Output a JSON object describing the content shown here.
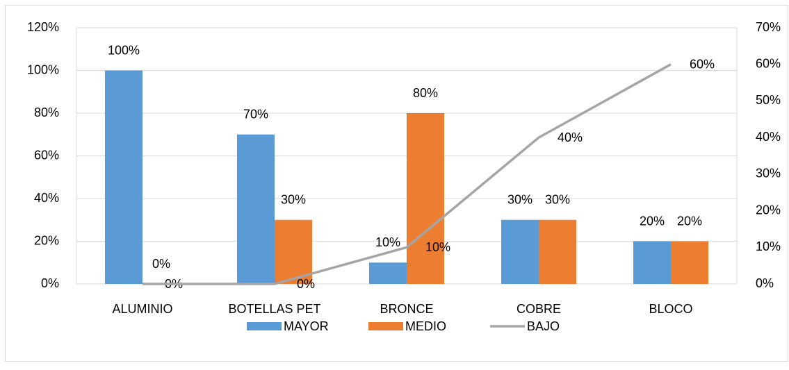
{
  "chart_data": {
    "type": "bar",
    "categories": [
      "ALUMINIO",
      "BOTELLAS PET",
      "BRONCE",
      "COBRE",
      "BLOCO"
    ],
    "series": [
      {
        "name": "MAYOR",
        "type": "bar",
        "color": "#5b9bd5",
        "values": [
          100,
          70,
          10,
          30,
          20
        ],
        "value_labels": [
          "100%",
          "70%",
          "10%",
          "30%",
          "20%"
        ]
      },
      {
        "name": "MEDIO",
        "type": "bar",
        "color": "#ed7d31",
        "values": [
          0,
          30,
          80,
          30,
          20
        ],
        "value_labels": [
          "0%",
          "30%",
          "80%",
          "30%",
          "20%"
        ]
      },
      {
        "name": "BAJO",
        "type": "line",
        "axis": "y2",
        "color": "#a5a5a5",
        "values": [
          0,
          0,
          10,
          40,
          60
        ],
        "value_labels": [
          "0%",
          "0%",
          "10%",
          "40%",
          "60%"
        ]
      }
    ],
    "ylim": [
      0,
      120
    ],
    "yticks": [
      {
        "value": 0,
        "label": "0%"
      },
      {
        "value": 20,
        "label": "20%"
      },
      {
        "value": 40,
        "label": "40%"
      },
      {
        "value": 60,
        "label": "60%"
      },
      {
        "value": 80,
        "label": "80%"
      },
      {
        "value": 100,
        "label": "100%"
      },
      {
        "value": 120,
        "label": "120%"
      }
    ],
    "y2lim": [
      0,
      70
    ],
    "y2ticks": [
      {
        "value": 0,
        "label": "0%"
      },
      {
        "value": 10,
        "label": "10%"
      },
      {
        "value": 20,
        "label": "20%"
      },
      {
        "value": 30,
        "label": "30%"
      },
      {
        "value": 40,
        "label": "40%"
      },
      {
        "value": 50,
        "label": "50%"
      },
      {
        "value": 60,
        "label": "60%"
      },
      {
        "value": 70,
        "label": "70%"
      }
    ],
    "grid": true,
    "legend": "bottom"
  }
}
